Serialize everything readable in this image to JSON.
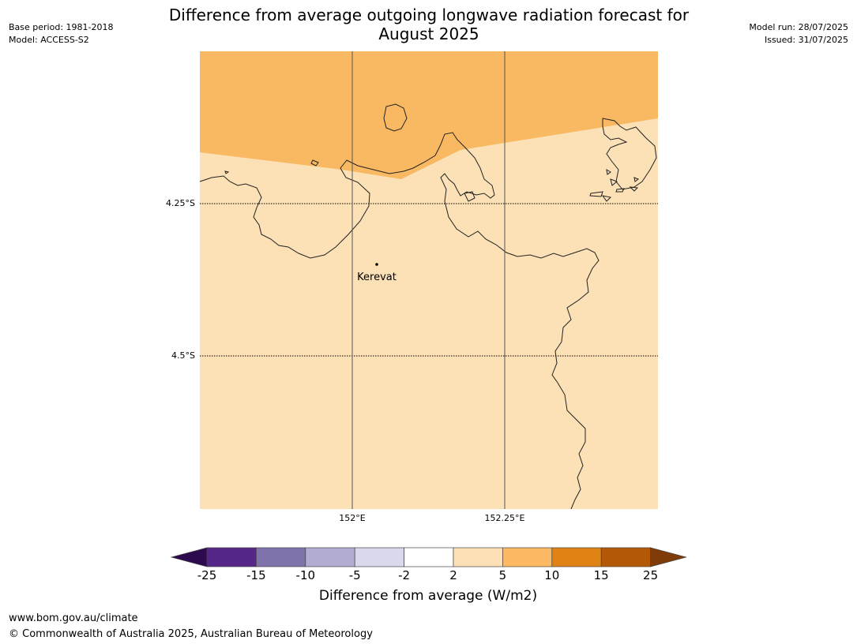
{
  "header": {
    "title_line1": "Difference from average outgoing longwave radiation forecast for",
    "title_line2": "August 2025",
    "base_period": "Base period: 1981-2018",
    "model": "Model: ACCESS-S2",
    "model_run": "Model run: 28/07/2025",
    "issued": "Issued: 31/07/2025"
  },
  "map": {
    "lat_labels": [
      "4.25°S",
      "4.5°S"
    ],
    "lon_labels": [
      "152°E",
      "152.25°E"
    ],
    "place": "Kerevat",
    "colors": {
      "low_anomaly": "#fce0b6",
      "high_anomaly": "#f9b862",
      "coast": "#222222"
    }
  },
  "colorbar": {
    "ticks": [
      "-25",
      "-15",
      "-10",
      "-5",
      "-2",
      "2",
      "5",
      "10",
      "15",
      "25"
    ],
    "colors": [
      "#2d0a4e",
      "#542788",
      "#8073ac",
      "#b2abd2",
      "#d8daeb",
      "#ffffff",
      "#fee0b6",
      "#fdb863",
      "#e08214",
      "#b35806",
      "#7f3b08"
    ],
    "label": "Difference from average (W/m2)"
  },
  "footer": {
    "url": "www.bom.gov.au/climate",
    "copyright": "© Commonwealth of Australia 2025, Australian Bureau of Meteorology"
  }
}
